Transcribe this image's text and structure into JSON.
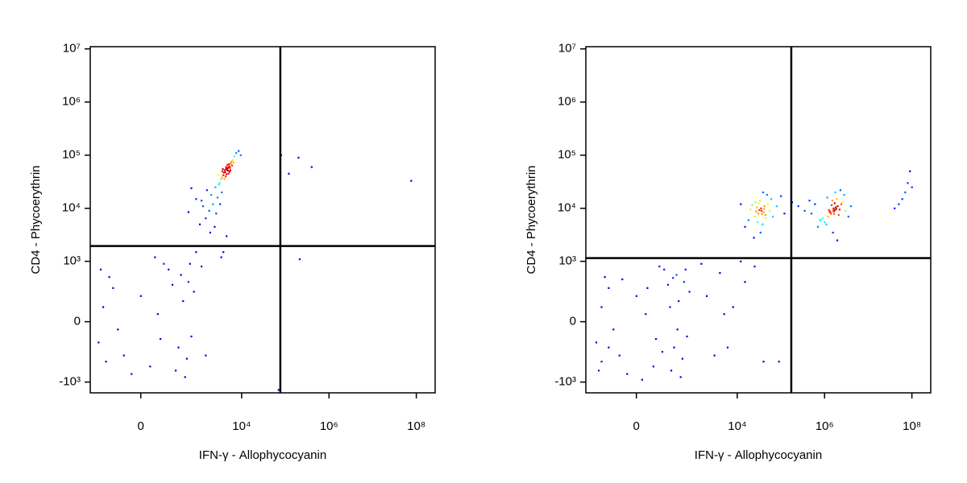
{
  "chart_data": [
    {
      "type": "scatter",
      "x_label": "IFN-γ - Allophycocyanin",
      "y_label": "CD4 - Phycoerythrin",
      "xscale": "logicle",
      "yscale": "logicle",
      "xlim": [
        -700,
        270000000
      ],
      "ylim": [
        -1600,
        11000000
      ],
      "xticks": [
        0,
        {
          "value": 10000,
          "label": "10⁴"
        },
        {
          "value": 1000000,
          "label": "10⁶"
        },
        {
          "value": 100000000,
          "label": "10⁸"
        }
      ],
      "yticks": [
        {
          "value": -1000,
          "label": "-10³"
        },
        0,
        {
          "value": 1000,
          "label": "10³"
        },
        {
          "value": 10000,
          "label": "10⁴"
        },
        {
          "value": 100000,
          "label": "10⁵"
        },
        {
          "value": 1000000,
          "label": "10⁶"
        },
        {
          "value": 10000000,
          "label": "10⁷"
        }
      ],
      "gate_x": 77000,
      "gate_y": 1950,
      "x": [
        4600,
        4200,
        5200,
        3800,
        5600,
        4900,
        4400,
        3500,
        6200,
        5000,
        4100,
        4700,
        3900,
        5400,
        6800,
        7500,
        4300,
        3600,
        5800,
        4800,
        3300,
        4500,
        5100,
        6500,
        4000,
        3700,
        5300,
        4600,
        4400,
        4900,
        8500,
        9500,
        3100,
        2900,
        6000,
        5500,
        2500,
        2000,
        1600,
        3000,
        1200,
        2200,
        1800,
        900,
        2600,
        1500,
        1100,
        2800,
        700,
        1900,
        3500,
        2400,
        1300,
        600,
        3200,
        4500,
        3800,
        3400,
        100,
        -200,
        350,
        50,
        -350,
        600,
        200,
        -100,
        450,
        0,
        -450,
        300,
        150,
        -250,
        700,
        500,
        -50,
        250,
        -150,
        800,
        400,
        -300,
        120,
        650,
        900,
        1200,
        1500,
        80,
        -400,
        550,
        80000,
        200000,
        400000,
        76000000,
        213000,
        120000,
        70000
      ],
      "y": [
        55000,
        48000,
        62000,
        42000,
        70000,
        51000,
        60000,
        38000,
        80000,
        45000,
        52000,
        66000,
        47000,
        58000,
        95000,
        110000,
        40000,
        50000,
        75000,
        57000,
        35000,
        44000,
        68000,
        72000,
        36000,
        55000,
        49000,
        53000,
        56000,
        59000,
        120000,
        100000,
        30000,
        42000,
        64000,
        52000,
        25000,
        18000,
        22000,
        28000,
        14000,
        12000,
        9000,
        15000,
        8000,
        6500,
        5000,
        16000,
        24000,
        3500,
        20000,
        4500,
        11000,
        8500,
        12000,
        3000,
        1500,
        1200,
        50,
        300,
        -200,
        -500,
        100,
        400,
        700,
        -300,
        150,
        200,
        -150,
        -600,
        900,
        500,
        -100,
        -800,
        -700,
        350,
        -50,
        250,
        550,
        -400,
        -120,
        900,
        1500,
        800,
        -300,
        1200,
        700,
        -350,
        100000,
        90000,
        60000,
        33000,
        1100,
        45000,
        -1400
      ]
    },
    {
      "type": "scatter",
      "x_label": "IFN-γ - Allophycocyanin",
      "y_label": "CD4 - Phycoerythrin",
      "xscale": "logicle",
      "yscale": "logicle",
      "xlim": [
        -700,
        270000000
      ],
      "ylim": [
        -1600,
        11000000
      ],
      "xticks": [
        0,
        {
          "value": 10000,
          "label": "10⁴"
        },
        {
          "value": 1000000,
          "label": "10⁶"
        },
        {
          "value": 100000000,
          "label": "10⁸"
        }
      ],
      "yticks": [
        {
          "value": -1000,
          "label": "-10³"
        },
        0,
        {
          "value": 1000,
          "label": "10³"
        },
        {
          "value": 10000,
          "label": "10⁴"
        },
        {
          "value": 100000,
          "label": "10⁵"
        },
        {
          "value": 1000000,
          "label": "10⁶"
        },
        {
          "value": 10000000,
          "label": "10⁷"
        }
      ],
      "gate_x": 173000,
      "gate_y": 1150,
      "x": [
        36000,
        30000,
        42000,
        25000,
        50000,
        33000,
        28000,
        45000,
        20000,
        38000,
        55000,
        31000,
        40000,
        26000,
        18000,
        60000,
        35000,
        44000,
        29000,
        22000,
        48000,
        15000,
        65000,
        34000,
        39000,
        27000,
        41000,
        37000,
        32000,
        12000,
        80000,
        24000,
        1660000,
        1400000,
        2000000,
        1200000,
        2400000,
        1500000,
        1800000,
        900000,
        2200000,
        1100000,
        3000000,
        1700000,
        1300000,
        2600000,
        800000,
        1900000,
        1600000,
        2100000,
        1000000,
        1450000,
        2800000,
        700000,
        3500000,
        1550000,
        1750000,
        1350000,
        1850000,
        1650000,
        1250000,
        600000,
        4000000,
        500000,
        1950000,
        2300000,
        1150000,
        1620000,
        1720000,
        1580000,
        250000,
        350000,
        180000,
        120000,
        450000,
        100000,
        50,
        -200,
        350,
        100,
        -300,
        600,
        200,
        -100,
        450,
        0,
        -400,
        300,
        150,
        -250,
        700,
        500,
        -50,
        250,
        -150,
        800,
        400,
        -300,
        120,
        650,
        30,
        -350,
        550,
        280,
        -80,
        180,
        420,
        60,
        -200,
        330,
        2000,
        4000,
        8000,
        15000,
        3000,
        25000,
        1500,
        6000,
        12000,
        40000,
        90000,
        5000,
        60000000,
        80000000,
        70000000,
        90000000,
        50000000,
        100000000,
        40000000
      ],
      "y": [
        9000,
        8000,
        11000,
        7000,
        12000,
        14000,
        10500,
        6500,
        9500,
        5000,
        9000,
        12500,
        8500,
        13000,
        6000,
        15000,
        10000,
        7500,
        5500,
        11500,
        18000,
        4500,
        7000,
        3500,
        20000,
        8800,
        9800,
        7800,
        9300,
        12000,
        11000,
        2800,
        9000,
        8000,
        11000,
        7000,
        12000,
        14000,
        10500,
        6500,
        9500,
        5000,
        9000,
        12500,
        8500,
        13000,
        6000,
        15000,
        10000,
        7500,
        5500,
        11500,
        18000,
        4500,
        7000,
        3500,
        20000,
        8800,
        9800,
        7800,
        9300,
        12000,
        11000,
        8000,
        2500,
        22000,
        16000,
        8600,
        9400,
        9100,
        11000,
        9000,
        13000,
        8000,
        14000,
        17000,
        50,
        300,
        -200,
        -500,
        100,
        400,
        700,
        -300,
        150,
        200,
        -150,
        -600,
        800,
        500,
        -100,
        -800,
        -700,
        350,
        -50,
        250,
        550,
        -400,
        -120,
        700,
        -900,
        -600,
        -350,
        100,
        450,
        -250,
        -50,
        300,
        -200,
        480,
        200,
        600,
        100,
        400,
        -300,
        800,
        900,
        -200,
        1000,
        -400,
        -400,
        50,
        15000,
        30000,
        20000,
        50000,
        12000,
        25000,
        10000
      ]
    }
  ]
}
